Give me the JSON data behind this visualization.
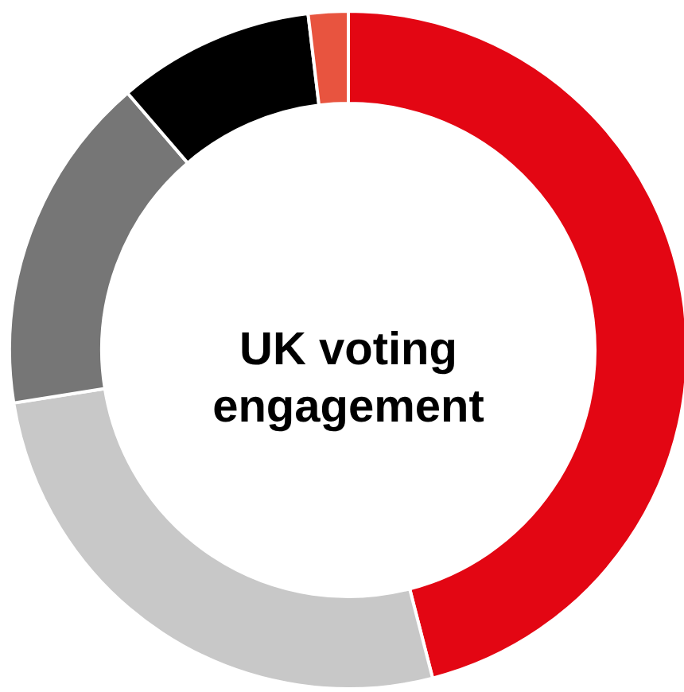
{
  "chart_data": {
    "type": "donut",
    "title": "UK voting engagement",
    "categories": [
      null,
      null,
      null,
      null,
      null
    ],
    "values": [
      46,
      26.5,
      16.2,
      9.4,
      1.9
    ],
    "colors": [
      "#e30613",
      "#c8c8c8",
      "#767676",
      "#000000",
      "#e8543f"
    ]
  }
}
